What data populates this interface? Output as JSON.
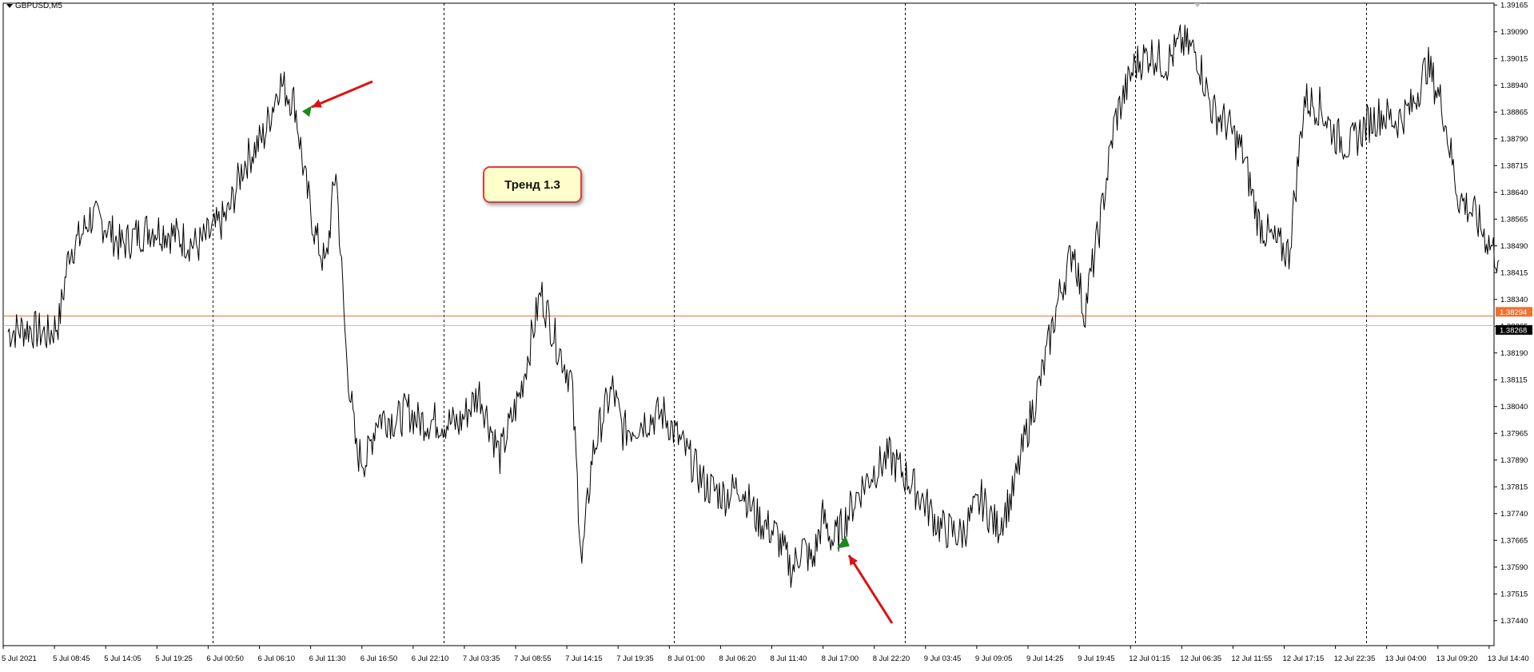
{
  "window": {
    "symbol": "GBPUSD,M5"
  },
  "annotation": {
    "text": "Тренд 1.3"
  },
  "colors": {
    "price_line": "#000000",
    "horizontal_line": "#f07030",
    "bid_line": "#c0c0c0",
    "arrow": "#e01010",
    "signal": "#1a8a1a",
    "orange_tag": "#f07030",
    "dark_tag": "#000000"
  },
  "chart_data": {
    "type": "line",
    "title": "GBPUSD,M5",
    "ylim": [
      1.3737,
      1.3917
    ],
    "y_ticks": [
      "1.39165",
      "1.39090",
      "1.39015",
      "1.38940",
      "1.38865",
      "1.38790",
      "1.38715",
      "1.38640",
      "1.38565",
      "1.38490",
      "1.38415",
      "1.38340",
      "1.38265",
      "1.38190",
      "1.38115",
      "1.38040",
      "1.37965",
      "1.37890",
      "1.37815",
      "1.37740",
      "1.37665",
      "1.37590",
      "1.37515",
      "1.37440"
    ],
    "x_ticks": [
      "5 Jul 2021",
      "5 Jul 08:45",
      "5 Jul 14:05",
      "5 Jul 19:25",
      "6 Jul 00:50",
      "6 Jul 06:10",
      "6 Jul 11:30",
      "6 Jul 16:50",
      "6 Jul 22:10",
      "7 Jul 03:35",
      "7 Jul 08:55",
      "7 Jul 14:15",
      "7 Jul 19:35",
      "8 Jul 01:00",
      "8 Jul 06:20",
      "8 Jul 11:40",
      "8 Jul 17:00",
      "8 Jul 22:20",
      "9 Jul 03:45",
      "9 Jul 09:05",
      "9 Jul 14:25",
      "9 Jul 19:45",
      "12 Jul 01:15",
      "12 Jul 06:35",
      "12 Jul 11:55",
      "12 Jul 17:15",
      "12 Jul 22:35",
      "13 Jul 04:00",
      "13 Jul 09:20",
      "13 Jul 14:40"
    ],
    "day_separators": [
      4,
      8.5,
      13,
      17.5,
      22,
      26.5
    ],
    "series": [
      {
        "x_index": [
          0,
          0.4,
          0.8,
          1.0,
          1.2,
          1.4,
          1.6,
          1.9,
          2.2,
          2.5,
          2.8,
          3.1,
          3.4,
          3.7,
          4.0,
          4.3,
          4.6,
          5.0,
          5.3,
          5.6,
          5.8,
          6.0,
          6.2,
          6.4,
          6.6,
          6.8,
          7.0,
          7.2,
          7.4,
          7.6,
          7.8,
          8.0,
          8.4,
          8.8,
          9.2,
          9.6,
          10.0,
          10.4,
          10.7,
          11.0,
          11.2,
          11.4,
          11.6,
          11.8,
          12.0,
          12.4,
          12.8,
          13.2,
          13.6,
          14.0,
          14.3,
          14.6,
          15.0,
          15.3,
          15.5,
          15.7,
          15.9,
          16.1,
          16.3,
          16.6,
          16.9,
          17.2,
          17.6,
          17.8,
          18.2,
          18.6,
          19.0,
          19.3,
          19.6,
          19.9,
          20.2,
          20.5,
          20.8,
          21.0,
          21.3,
          21.6,
          22.0,
          22.3,
          22.6,
          22.9,
          23.2,
          23.5,
          23.8,
          24.1,
          24.4,
          24.7,
          25.0,
          25.3,
          25.6,
          25.9,
          26.2,
          26.5,
          26.8,
          27.1,
          27.4,
          27.7,
          28.0,
          28.3,
          28.6,
          28.9,
          29.1
        ],
        "values": [
          1.3825,
          1.3826,
          1.3824,
          1.3828,
          1.3848,
          1.3851,
          1.3857,
          1.3855,
          1.3849,
          1.3852,
          1.3854,
          1.3853,
          1.3851,
          1.3849,
          1.3853,
          1.3858,
          1.3872,
          1.388,
          1.3895,
          1.3889,
          1.3867,
          1.3852,
          1.3843,
          1.3871,
          1.3819,
          1.3791,
          1.3789,
          1.3801,
          1.3801,
          1.38,
          1.3803,
          1.38,
          1.38,
          1.3799,
          1.3808,
          1.379,
          1.3808,
          1.3836,
          1.3822,
          1.3811,
          1.376,
          1.379,
          1.3801,
          1.3809,
          1.3797,
          1.38,
          1.3802,
          1.3792,
          1.3782,
          1.3779,
          1.3782,
          1.3773,
          1.3768,
          1.3758,
          1.3765,
          1.376,
          1.3773,
          1.3766,
          1.3771,
          1.378,
          1.3786,
          1.379,
          1.3783,
          1.3779,
          1.377,
          1.3768,
          1.3778,
          1.377,
          1.3779,
          1.3798,
          1.3814,
          1.3834,
          1.3849,
          1.383,
          1.3854,
          1.3884,
          1.39,
          1.3903,
          1.39,
          1.3906,
          1.3903,
          1.3887,
          1.3883,
          1.3875,
          1.3856,
          1.385,
          1.3847,
          1.389,
          1.3888,
          1.388,
          1.3877,
          1.3883,
          1.3886,
          1.3884,
          1.3888,
          1.39,
          1.3888,
          1.3863,
          1.3858,
          1.385,
          1.3845
        ]
      }
    ],
    "horizontal_lines": [
      {
        "price_label": "1.38294",
        "value": 1.38294
      },
      {
        "price_label": "1.38268",
        "value": 1.38268
      }
    ],
    "signals": [
      {
        "x_index": 5.85,
        "value": 1.38865,
        "kind": "sell"
      },
      {
        "x_index": 16.3,
        "value": 1.3766,
        "kind": "buy"
      }
    ]
  }
}
